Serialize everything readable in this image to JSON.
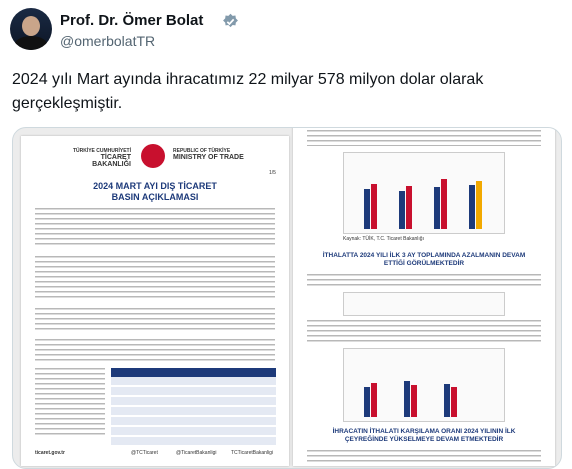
{
  "author": {
    "name": "Prof. Dr. Ömer Bolat",
    "handle": "@omerbolatTR"
  },
  "tweet": {
    "text": "2024 yılı Mart ayında ihracatımız 22 milyar 578 milyon dolar olarak gerçekleşmiştir."
  },
  "document": {
    "left_page": {
      "org_tr_1": "TÜRKİYE CUMHURİYETİ",
      "org_tr_2": "TİCARET BAKANLIĞI",
      "org_en_1": "REPUBLIC OF TÜRKİYE",
      "org_en_2": "MINISTRY OF TRADE",
      "page": "1/5",
      "title_1": "2024 MART AYI DIŞ TİCARET",
      "title_2": "BASIN AÇIKLAMASI",
      "footer": "ticaret.gov.tr",
      "social": [
        "@TCTicaret",
        "@TicaretBakanligi",
        "TCTicaretBakanligi"
      ]
    },
    "right_page": {
      "heading_1": "İTHALATTA 2024 YILI İLK 3 AY TOPLAMINDA AZALMANIN DEVAM ETTİĞİ GÖRÜLMEKTEDİR",
      "heading_2": "İHRACATIN İTHALATI KARŞILAMA ORANI 2024 YILININ İLK ÇEYREĞİNDE YÜKSELMEYE DEVAM ETMEKTEDİR",
      "source": "Kaynak: TÜİK, T.C. Ticaret Bakanlığı"
    }
  }
}
